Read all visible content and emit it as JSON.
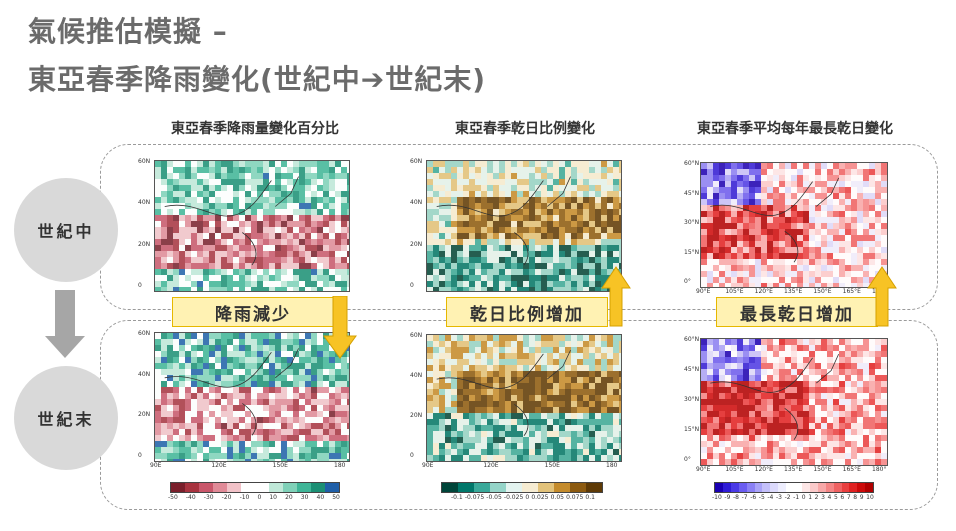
{
  "slide": {
    "title_line1": "氣候推估模擬 –",
    "title_line2": "東亞春季降雨變化(世紀中➔世紀末)"
  },
  "columns": [
    {
      "title": "東亞春季降雨量變化百分比"
    },
    {
      "title": "東亞春季乾日比例變化"
    },
    {
      "title": "東亞春季平均每年最長乾日變化"
    }
  ],
  "rows": [
    {
      "label": "世紀中"
    },
    {
      "label": "世紀末"
    }
  ],
  "callouts": [
    {
      "text": "降雨減少",
      "direction": "down"
    },
    {
      "text": "乾日比例增加",
      "direction": "up"
    },
    {
      "text": "最長乾日增加",
      "direction": "up"
    }
  ],
  "axes": {
    "lat_ticks_a": [
      "60N",
      "40N",
      "20N",
      "0"
    ],
    "lon_ticks_a": [
      "90E",
      "120E",
      "150E",
      "180"
    ],
    "lat_ticks_c": [
      "60°N",
      "45°N",
      "30°N",
      "15°N",
      "0°"
    ],
    "lon_ticks_c": [
      "90°E",
      "105°E",
      "120°E",
      "135°E",
      "150°E",
      "165°E",
      "180°"
    ]
  },
  "colorbars": [
    {
      "labels": [
        "-50",
        "-40",
        "-30",
        "-20",
        "-10",
        "0",
        "10",
        "20",
        "30",
        "40",
        "50"
      ],
      "colors": [
        "#7a1f2b",
        "#a8333f",
        "#c9566a",
        "#e08a97",
        "#f2c2c8",
        "#ffffff",
        "#ffffff",
        "#bfe8d8",
        "#7fd1b8",
        "#3fb597",
        "#1b8f74",
        "#1f5fa8"
      ]
    },
    {
      "labels": [
        "-0.1",
        "-0.075",
        "-0.05",
        "-0.025",
        "0",
        "0.025",
        "0.05",
        "0.075",
        "0.1"
      ],
      "colors": [
        "#00453a",
        "#00776a",
        "#3aa99a",
        "#94d4c8",
        "#e3f3ef",
        "#f6ecd2",
        "#e2c27a",
        "#c48b2c",
        "#8c5a10",
        "#5e3a06"
      ]
    },
    {
      "labels": [
        "-10",
        "-9",
        "-8",
        "-7",
        "-6",
        "-5",
        "-4",
        "-3",
        "-2",
        "-1",
        "0",
        "1",
        "2",
        "3",
        "4",
        "5",
        "6",
        "7",
        "8",
        "9",
        "10"
      ],
      "colors": [
        "#1a00b3",
        "#2f1cd6",
        "#4a3ae6",
        "#6a5cf0",
        "#8a80f5",
        "#a9a3f8",
        "#c4c0fa",
        "#dcdafc",
        "#eeeefe",
        "#ffffff",
        "#ffffff",
        "#fde6e6",
        "#fbcaca",
        "#f8a8a8",
        "#f48585",
        "#ef6262",
        "#e93f3f",
        "#e02222",
        "#cc0a0a",
        "#b00000"
      ]
    }
  ],
  "colors": {
    "title": "#6b6b6b",
    "callout_fill": "#fff2b3",
    "callout_border": "#e6b800",
    "arrow_fill": "#f7c325",
    "circle_fill": "#d9d9d9"
  }
}
